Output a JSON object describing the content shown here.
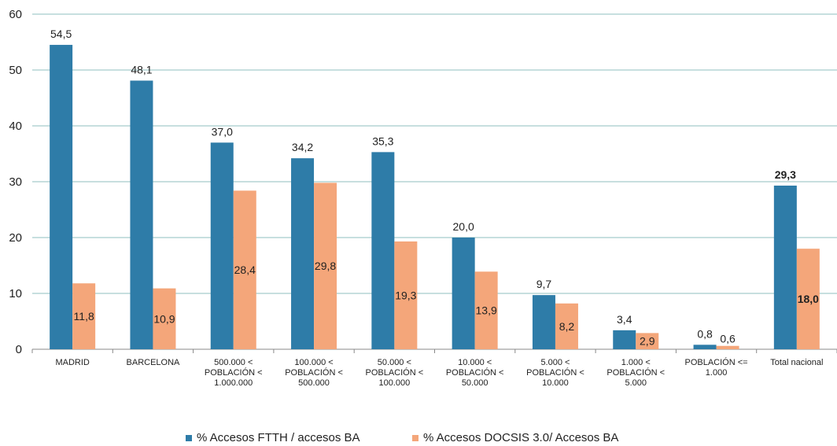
{
  "chart_data": {
    "type": "bar",
    "ylim": [
      0,
      60
    ],
    "yticks": [
      0,
      10,
      20,
      30,
      40,
      50,
      60
    ],
    "grid": true,
    "legend_position": "bottom",
    "categories": [
      [
        "MADRID"
      ],
      [
        "BARCELONA"
      ],
      [
        "500.000 <",
        "POBLACIÓN <",
        "1.000.000"
      ],
      [
        "100.000 <",
        "POBLACIÓN <",
        "500.000"
      ],
      [
        "50.000 <",
        "POBLACIÓN <",
        "100.000"
      ],
      [
        "10.000 <",
        "POBLACIÓN <",
        "50.000"
      ],
      [
        "5.000 <",
        "POBLACIÓN <",
        "10.000"
      ],
      [
        "1.000 <",
        "POBLACIÓN <",
        "5.000"
      ],
      [
        "POBLACIÓN <=",
        "1.000"
      ],
      [
        "Total nacional"
      ]
    ],
    "series": [
      {
        "name": "% Accesos FTTH / accesos BA",
        "color": "#2e7ca8",
        "values": [
          54.5,
          48.1,
          37.0,
          34.2,
          35.3,
          20.0,
          9.7,
          3.4,
          0.8,
          29.3
        ],
        "labels": [
          "54,5",
          "48,1",
          "37,0",
          "34,2",
          "35,3",
          "20,0",
          "9,7",
          "3,4",
          "0,8",
          "29,3"
        ]
      },
      {
        "name": "% Accesos DOCSIS 3.0/ Accesos BA",
        "color": "#f4a67a",
        "values": [
          11.8,
          10.9,
          28.4,
          29.8,
          19.3,
          13.9,
          8.2,
          2.9,
          0.6,
          18.0
        ],
        "labels": [
          "11,8",
          "10,9",
          "28,4",
          "29,8",
          "19,3",
          "13,9",
          "8,2",
          "2,9",
          "0,6",
          "18,0"
        ]
      }
    ],
    "bold_labels_category_index": 9
  },
  "legend": {
    "items": [
      "% Accesos FTTH / accesos BA",
      "% Accesos DOCSIS 3.0/ Accesos BA"
    ]
  }
}
